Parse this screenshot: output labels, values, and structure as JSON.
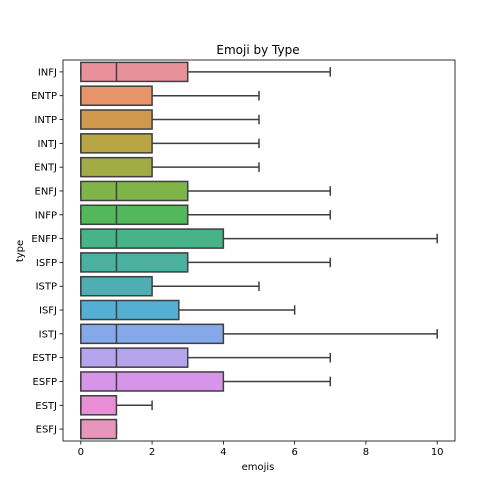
{
  "chart_data": {
    "type": "boxplot",
    "orientation": "horizontal",
    "title": "Emoji by Type",
    "xlabel": "emojis",
    "ylabel": "type",
    "xlim": [
      -0.5,
      10.5
    ],
    "xticks": [
      0,
      2,
      4,
      6,
      8,
      10
    ],
    "grid": false,
    "categories": [
      "INFJ",
      "ENTP",
      "INTP",
      "INTJ",
      "ENTJ",
      "ENFJ",
      "INFP",
      "ENFP",
      "ISFP",
      "ISTP",
      "ISFJ",
      "ISTJ",
      "ESTP",
      "ESFP",
      "ESTJ",
      "ESFJ"
    ],
    "colors": [
      "#e8919a",
      "#e8946a",
      "#d1994e",
      "#b8a544",
      "#a3ab44",
      "#7fb548",
      "#53b85a",
      "#48b389",
      "#4ab0a0",
      "#4daeb3",
      "#55aed4",
      "#85a8e8",
      "#b5a4ec",
      "#d695e8",
      "#e88ed6",
      "#e895bd"
    ],
    "boxes": [
      {
        "type": "INFJ",
        "whisker_low": 0,
        "q1": 0,
        "median": 1,
        "q3": 3,
        "whisker_high": 7
      },
      {
        "type": "ENTP",
        "whisker_low": 0,
        "q1": 0,
        "median": 0,
        "q3": 2,
        "whisker_high": 5
      },
      {
        "type": "INTP",
        "whisker_low": 0,
        "q1": 0,
        "median": 0,
        "q3": 2,
        "whisker_high": 5
      },
      {
        "type": "INTJ",
        "whisker_low": 0,
        "q1": 0,
        "median": 0,
        "q3": 2,
        "whisker_high": 5
      },
      {
        "type": "ENTJ",
        "whisker_low": 0,
        "q1": 0,
        "median": 0,
        "q3": 2,
        "whisker_high": 5
      },
      {
        "type": "ENFJ",
        "whisker_low": 0,
        "q1": 0,
        "median": 1,
        "q3": 3,
        "whisker_high": 7
      },
      {
        "type": "INFP",
        "whisker_low": 0,
        "q1": 0,
        "median": 1,
        "q3": 3,
        "whisker_high": 7
      },
      {
        "type": "ENFP",
        "whisker_low": 0,
        "q1": 0,
        "median": 1,
        "q3": 4,
        "whisker_high": 10
      },
      {
        "type": "ISFP",
        "whisker_low": 0,
        "q1": 0,
        "median": 1,
        "q3": 3,
        "whisker_high": 7
      },
      {
        "type": "ISTP",
        "whisker_low": 0,
        "q1": 0,
        "median": 0,
        "q3": 2,
        "whisker_high": 5
      },
      {
        "type": "ISFJ",
        "whisker_low": 0,
        "q1": 0,
        "median": 1,
        "q3": 2.75,
        "whisker_high": 6
      },
      {
        "type": "ISTJ",
        "whisker_low": 0,
        "q1": 0,
        "median": 1,
        "q3": 4,
        "whisker_high": 10
      },
      {
        "type": "ESTP",
        "whisker_low": 0,
        "q1": 0,
        "median": 1,
        "q3": 3,
        "whisker_high": 7
      },
      {
        "type": "ESFP",
        "whisker_low": 0,
        "q1": 0,
        "median": 1,
        "q3": 4,
        "whisker_high": 7
      },
      {
        "type": "ESTJ",
        "whisker_low": 0,
        "q1": 0,
        "median": 0,
        "q3": 1,
        "whisker_high": 2
      },
      {
        "type": "ESFJ",
        "whisker_low": 0,
        "q1": 0,
        "median": 0,
        "q3": 1,
        "whisker_high": 1
      }
    ]
  }
}
